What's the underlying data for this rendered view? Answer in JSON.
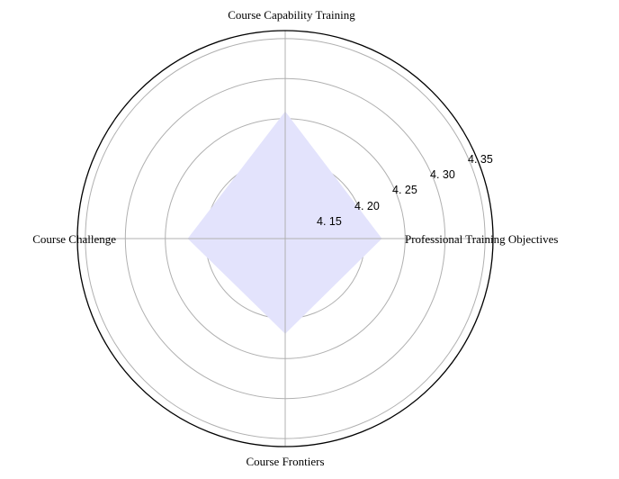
{
  "chart_data": {
    "type": "radar",
    "axes": [
      "Course Capability Training",
      "Professional Training Objectives",
      "Course Frontiers",
      "Course Challenge"
    ],
    "series": [
      {
        "values": [
          4.259,
          4.221,
          4.219,
          4.222
        ]
      }
    ],
    "r_ticks": [
      "4. 15",
      "4. 20",
      "4. 25",
      "4. 30",
      "4. 35"
    ],
    "r_tick_values": [
      4.15,
      4.2,
      4.25,
      4.3,
      4.35
    ],
    "rlim": [
      4.1,
      4.36
    ],
    "grid": true,
    "fill_color": "#e3e3fc",
    "grid_color": "#b0b0b0",
    "outer_color": "#000000"
  }
}
